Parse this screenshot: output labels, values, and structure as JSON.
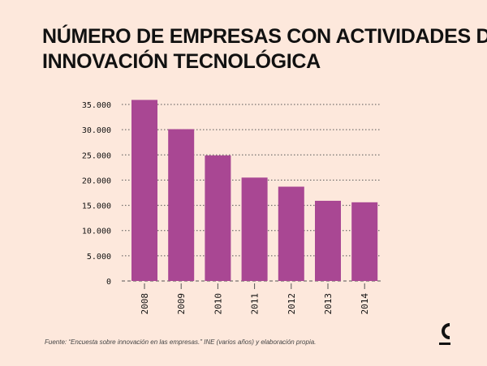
{
  "title_lines": [
    "NÚMERO DE EMPRESAS CON ACTIVIDADES DE",
    "INNOVACIÓN TECNOLÓGICA"
  ],
  "source": "Fuente: “Encuesta sobre innovación en las empresas.” INE (varios años) y elaboración propia.",
  "logo_icon": "c-logo-icon",
  "colors": {
    "background": "#fde8dc",
    "bar": "#a94793",
    "grid": "#555555",
    "text": "#111111"
  },
  "chart_data": {
    "type": "bar",
    "title": "NÚMERO DE EMPRESAS CON ACTIVIDADES DE INNOVACIÓN TECNOLÓGICA",
    "categories": [
      "2008",
      "2009",
      "2010",
      "2011",
      "2012",
      "2013",
      "2014"
    ],
    "values": [
      35900,
      30100,
      24900,
      20500,
      18700,
      15900,
      15600
    ],
    "yticks": [
      0,
      5000,
      10000,
      15000,
      20000,
      25000,
      30000,
      35000
    ],
    "ytick_labels": [
      "0",
      "5.000",
      "10.000",
      "15.000",
      "20.000",
      "25.000",
      "30.000",
      "35.000"
    ],
    "ylim": [
      0,
      35000
    ],
    "xlabel": "",
    "ylabel": "",
    "grid": true,
    "legend": "none"
  }
}
